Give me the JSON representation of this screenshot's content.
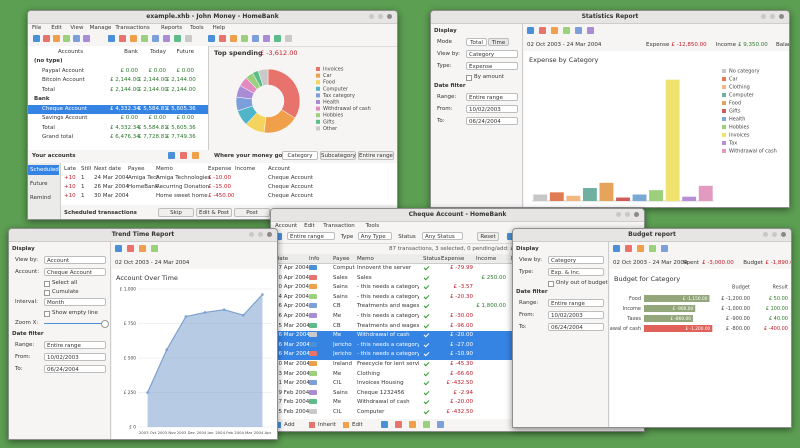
{
  "main": {
    "title": "example.xhb - John Money - HomeBank",
    "menu": [
      "File",
      "Edit",
      "View",
      "Manage",
      "Transactions",
      "Reports",
      "Tools",
      "Help"
    ],
    "accounts": {
      "columns": [
        "Accounts",
        "Bank",
        "Today",
        "Future"
      ],
      "rows": [
        {
          "name": "(no type)"
        },
        {
          "name": "Paypal Account",
          "bank": "£ 0.00",
          "today": "£ 0.00",
          "future": "£ 0.00"
        },
        {
          "name": "Bitcoin Account",
          "bank": "£ 2,144.00",
          "today": "£ 2,144.00",
          "future": "£ 2,144.00"
        },
        {
          "name": "Total",
          "bank": "£ 2,144.00",
          "today": "£ 2,144.00",
          "future": "£ 2,144.00"
        },
        {
          "name": "Bank"
        },
        {
          "name": "Cheque Account",
          "bank": "£ 4,332.34",
          "today": "£ 5,584.81",
          "future": "£ 5,605.36"
        },
        {
          "name": "Savings Account",
          "bank": "£ 0.00",
          "today": "£ 0.00",
          "future": "£ 0.00"
        },
        {
          "name": "Total",
          "bank": "£ 4,332.34",
          "today": "£ 5,584.81",
          "future": "£ 5,605.36"
        },
        {
          "name": "Grand total",
          "bank": "£ 6,476.34",
          "today": "£ 7,728.81",
          "future": "£ 7,749.36"
        }
      ],
      "selected": 5,
      "footer": "Your accounts"
    },
    "spending": {
      "title": "Top spending",
      "total": "£ -3,612.00",
      "chart": {
        "type": "pie",
        "categories": [
          "Invoices",
          "Car",
          "Food",
          "Computer",
          "Tax category",
          "Health",
          "Withdrawal of cash",
          "Hobbies",
          "Gifts",
          "Other"
        ],
        "values": [
          34,
          18,
          10,
          8,
          7,
          6,
          5,
          4,
          3,
          5
        ],
        "colors": [
          "#e8736c",
          "#f0a04b",
          "#f4d35e",
          "#4fb6c9",
          "#7c9ed9",
          "#a98bd6",
          "#e38bc1",
          "#9bd17d",
          "#5dbd8a",
          "#c9c9c9"
        ]
      },
      "footer": "Where your money goes",
      "buttons": [
        "Category",
        "Subcategory",
        "Entire range"
      ]
    },
    "scheduled": {
      "tabs": [
        "Scheduled",
        "Future",
        "Remind"
      ],
      "columns": [
        "Late",
        "Still",
        "Next date",
        "Payee",
        "Memo",
        "Expense",
        "Income",
        "Account"
      ],
      "rows": [
        {
          "late": "+10",
          "still": "1",
          "date": "24 Mar 2004",
          "payee": "Amiga Tech",
          "memo": "Amiga Technologies",
          "expense": "£ -10.00",
          "account": "Cheque Account"
        },
        {
          "late": "+10",
          "still": "1",
          "date": "26 Mar 2004",
          "payee": "HomeBank",
          "memo": "Recurring Donation",
          "expense": "£ -15.00",
          "account": "Cheque Account"
        },
        {
          "late": "+10",
          "still": "1",
          "date": "30 Mar 2004",
          "memo": "Home sweet home",
          "expense": "£ -450.00",
          "account": "Cheque Account"
        }
      ],
      "footer": "Scheduled transactions",
      "buttons": [
        "Skip",
        "Edit & Post",
        "Post"
      ],
      "max_date": "maximum post date 08/04/2004"
    }
  },
  "stats": {
    "title": "Statistics Report",
    "panel": [
      {
        "heading": "Display"
      },
      {
        "label": "Mode",
        "buttons": [
          "Total",
          "Time"
        ]
      },
      {
        "label": "View by:",
        "value": "Category"
      },
      {
        "label": "Type:",
        "value": "Expense"
      },
      {
        "check": "By amount"
      },
      {
        "heading": "Date filter"
      },
      {
        "label": "Range:",
        "value": "Entire range"
      },
      {
        "label": "From:",
        "value": "10/02/2003"
      },
      {
        "label": "To:",
        "value": "06/24/2004"
      }
    ],
    "period": "02 Oct 2003 - 24 Mar 2004",
    "summary": [
      {
        "label": "Expense",
        "value": "£ -12,850.00"
      },
      {
        "label": "Income",
        "value": "£ 9,350.00"
      },
      {
        "label": "Balance",
        "value": "£ -3,500.00"
      }
    ],
    "chart": {
      "type": "bar",
      "title": "Expense by Category",
      "categories": [
        "No category",
        "Car",
        "Clothing",
        "Computer",
        "Food",
        "Gifts",
        "Health",
        "Hobbies",
        "Invoices",
        "Tax",
        "Withdrawal of cash"
      ],
      "values": [
        150,
        200,
        120,
        300,
        420,
        80,
        150,
        250,
        2800,
        100,
        350
      ],
      "colors": [
        "#c7c7c7",
        "#e07b53",
        "#f2b880",
        "#6fb0a0",
        "#e6a35c",
        "#cf5b5b",
        "#7aa9d6",
        "#9ccf7a",
        "#f0e26e",
        "#b98fd4",
        "#e39ac0"
      ],
      "ylim": [
        0,
        3000
      ]
    }
  },
  "cheque": {
    "title": "Cheque Account - HomeBank",
    "menu": [
      "Account",
      "Edit",
      "Transaction",
      "Tools"
    ],
    "filters": [
      {
        "value": "Entire range"
      },
      {
        "label": "Type",
        "value": "Any Type"
      },
      {
        "label": "Status",
        "value": "Any Status"
      },
      {
        "button": "Reset"
      }
    ],
    "info": "87 transactions, 3 selected, 0 pending/add: £ -57.90",
    "columns": [
      "Date",
      "Info",
      "Payee",
      "Memo",
      "Status",
      "Expense",
      "Income",
      "Balance"
    ],
    "rows": [
      {
        "date": "27 Apr 2004",
        "payee": "Computer",
        "memo": "Innovent the server",
        "expense": "£ -79.99",
        "balance": "£ 5,605.36"
      },
      {
        "date": "20 Apr 2004",
        "payee": "Sales",
        "memo": "Sales",
        "income": "£ 250.00",
        "balance": "£ 5,685.35"
      },
      {
        "date": "20 Apr 2004",
        "payee": "Sains",
        "memo": "- this needs a category",
        "expense": "£ -3.57",
        "balance": "£ 5,435.35"
      },
      {
        "date": "14 Apr 2004",
        "payee": "Sains",
        "memo": "- this needs a category",
        "expense": "£ -20.30",
        "balance": "£ 5,438.92"
      },
      {
        "date": "06 Apr 2004",
        "payee": "CB",
        "memo": "Treatments and wages",
        "income": "£ 1,800.00",
        "balance": "£ 5,459.22"
      },
      {
        "date": "06 Apr 2004",
        "payee": "Me",
        "memo": "- this needs a category",
        "expense": "£ -30.00",
        "balance": "£ 3,659.22"
      },
      {
        "date": "25 Mar 2004",
        "payee": "CB",
        "memo": "Treatments and wages",
        "expense": "£ -96.00",
        "balance": "£ 3,689.22"
      },
      {
        "date": "16 Mar 2004",
        "payee": "Me",
        "memo": "Withdrawal of cash",
        "expense": "£ -20.00",
        "balance": "£ 3,785.22"
      },
      {
        "date": "16 Mar 2004",
        "payee": "Jericho",
        "memo": "- this needs a category",
        "expense": "£ -27.00",
        "balance": "£ 3,805.22"
      },
      {
        "date": "16 Mar 2004",
        "payee": "Jericho",
        "memo": "- this needs a category",
        "expense": "£ -10.90",
        "balance": "£ 3,832.22"
      },
      {
        "date": "10 Mar 2004",
        "payee": "Ireland",
        "memo": "Freecycle for lent service",
        "expense": "£ -45.30",
        "balance": "£ 3,843.12"
      },
      {
        "date": "03 Mar 2004",
        "payee": "Me",
        "memo": "Clothing",
        "expense": "£ -66.60",
        "balance": "£ 3,888.42"
      },
      {
        "date": "01 Mar 2004",
        "payee": "CIL",
        "memo": "Invoices Housing",
        "expense": "£ -432.50",
        "balance": "£ 3,955.02"
      },
      {
        "date": "29 Feb 2004",
        "payee": "Sains",
        "memo": "Cheque 1232456",
        "expense": "£ -2.94",
        "balance": "£ 4,387.52"
      },
      {
        "date": "27 Feb 2004",
        "payee": "Me",
        "memo": "Withdrawal of cash",
        "expense": "£ -20.00",
        "balance": "£ 4,390.46"
      },
      {
        "date": "25 Feb 2004",
        "payee": "CIL",
        "memo": "Computer",
        "expense": "£ -432.50",
        "balance": "£ 4,410.46"
      }
    ],
    "selected": [
      7,
      8,
      9
    ],
    "toolbar": [
      "Add",
      "Inherit",
      "Edit"
    ]
  },
  "trend": {
    "title": "Trend Time Report",
    "panel": [
      {
        "heading": "Display"
      },
      {
        "label": "View by:",
        "value": "Account"
      },
      {
        "label": "Account:",
        "value": "Cheque Account"
      },
      {
        "check": "Select all"
      },
      {
        "check": "Cumulate"
      },
      {
        "label": "Interval:",
        "value": "Month"
      },
      {
        "check": "Show empty line"
      },
      {
        "label": "Zoom X:"
      },
      {
        "heading": "Date filter"
      },
      {
        "label": "Range:",
        "value": "Entire range"
      },
      {
        "label": "From:",
        "value": "10/02/2003"
      },
      {
        "label": "To:",
        "value": "06/24/2004"
      }
    ],
    "period": "02 Oct 2003 - 24 Mar 2004",
    "chart": {
      "type": "line",
      "title": "Account Over Time",
      "categories": [
        "2003 Oct",
        "2003 Nov",
        "2003 Dec",
        "2004 Jan",
        "2004 Feb",
        "2004 Mar",
        "2004 Apr"
      ],
      "values": [
        250,
        560,
        800,
        830,
        850,
        810,
        960
      ],
      "color": "#7ba0d0",
      "ylim": [
        0,
        1000
      ],
      "yticks": [
        {
          "value": 0,
          "label": "£ 0"
        },
        {
          "value": 250,
          "label": "£ 250"
        },
        {
          "value": 500,
          "label": "£ 500"
        },
        {
          "value": 750,
          "label": "£ 750"
        },
        {
          "value": 1000,
          "label": "£ 1,000"
        }
      ]
    }
  },
  "budget": {
    "title": "Budget report",
    "panel": [
      {
        "heading": "Display"
      },
      {
        "label": "View by:",
        "value": "Category"
      },
      {
        "label": "Type:",
        "value": "Exp. & Inc."
      },
      {
        "check": "Only out of budget"
      },
      {
        "heading": "Date filter"
      },
      {
        "label": "Range:",
        "value": "Entire range"
      },
      {
        "label": "From:",
        "value": "10/02/2003"
      },
      {
        "label": "To:",
        "value": "06/24/2004"
      }
    ],
    "period": "02 Oct 2003 - 24 Mar 2004",
    "summary": [
      {
        "label": "Spent",
        "value": "£ -3,000.00"
      },
      {
        "label": "Budget",
        "value": "£ -1,890.00"
      },
      {
        "label": "Result",
        "value": "£ -1,110.00"
      }
    ],
    "chart": {
      "type": "hbar",
      "title": "Budget for Category",
      "columns": [
        "Budget",
        "Result"
      ],
      "categories": [
        "Food",
        "Income",
        "Taxes",
        "Withdrawal of cash"
      ],
      "values": [
        -1150,
        -900,
        -860,
        -1200
      ],
      "value_labels": [
        "£ -1,150.00",
        "£ -900.00",
        "£ -860.00",
        "£ -1,200.00"
      ],
      "budget": [
        "£ -1,200.00",
        "£ -1,000.00",
        "£ -900.00",
        "£ -800.00"
      ],
      "result": [
        "£ 50.00",
        "£ 100.00",
        "£ 40.00",
        "£ -400.00"
      ],
      "colors": [
        "#93a77a",
        "#93a77a",
        "#93a77a",
        "#e0605a"
      ],
      "xlim": [
        0,
        -1300
      ]
    }
  }
}
